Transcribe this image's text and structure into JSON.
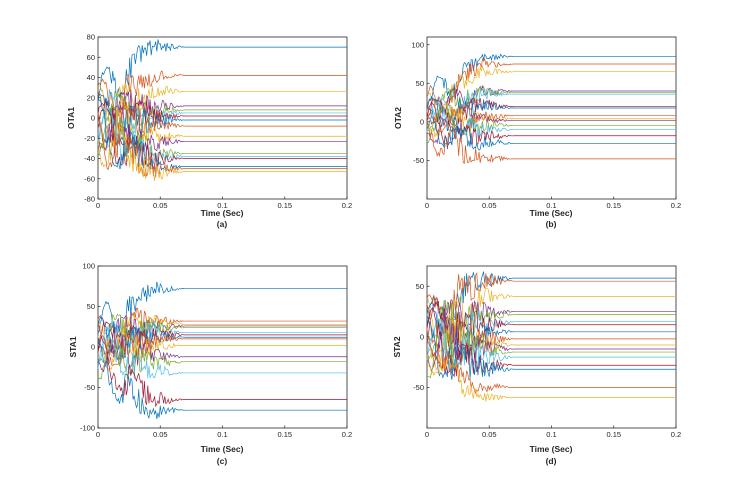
{
  "colors": [
    "#0072BD",
    "#D95319",
    "#EDB120",
    "#7E2F8E",
    "#77AC30",
    "#4DBEEE",
    "#A2142F"
  ],
  "chart_data": [
    {
      "id": "a",
      "type": "line",
      "ylabel": "OTA1",
      "xlabel": "Time (Sec)",
      "caption": "(a)",
      "xlim": [
        0,
        0.2
      ],
      "ylim": [
        -80,
        80
      ],
      "xticks": [
        0,
        0.05,
        0.1,
        0.15,
        0.2
      ],
      "yticks": [
        -80,
        -60,
        -40,
        -20,
        0,
        20,
        40,
        60,
        80
      ],
      "xtick_labels": [
        "0",
        "0.05",
        "0.1",
        "0.15",
        "0.2"
      ],
      "ytick_labels": [
        "-80",
        "-60",
        "-40",
        "-20",
        "0",
        "20",
        "40",
        "60",
        "80"
      ],
      "settle_time": 0.07,
      "final_values": [
        70,
        42,
        26,
        12,
        8,
        5,
        2,
        -2,
        -8,
        -18,
        -23,
        -35,
        -38,
        -40,
        -48,
        -50,
        -53
      ]
    },
    {
      "id": "b",
      "type": "line",
      "ylabel": "OTA2",
      "xlabel": "Time (Sec)",
      "caption": "(b)",
      "xlim": [
        0,
        0.2
      ],
      "ylim": [
        -100,
        110
      ],
      "xticks": [
        0,
        0.05,
        0.1,
        0.15,
        0.2
      ],
      "yticks": [
        -50,
        0,
        50,
        100
      ],
      "xtick_labels": [
        "0",
        "0.05",
        "0.1",
        "0.15",
        "0.2"
      ],
      "ytick_labels": [
        "-50",
        "0",
        "50",
        "100"
      ],
      "settle_time": 0.07,
      "final_values": [
        85,
        75,
        65,
        40,
        38,
        36,
        20,
        18,
        8,
        4,
        2,
        -5,
        -10,
        -18,
        -28,
        -48
      ]
    },
    {
      "id": "c",
      "type": "line",
      "ylabel": "STA1",
      "xlabel": "Time (Sec)",
      "caption": "(c)",
      "xlim": [
        0,
        0.2
      ],
      "ylim": [
        -100,
        100
      ],
      "xticks": [
        0,
        0.05,
        0.1,
        0.15,
        0.2
      ],
      "yticks": [
        -100,
        -50,
        0,
        50,
        100
      ],
      "xtick_labels": [
        "0",
        "0.05",
        "0.1",
        "0.15",
        "0.2"
      ],
      "ytick_labels": [
        "-100",
        "-50",
        "0",
        "50",
        "100"
      ],
      "settle_time": 0.07,
      "final_values": [
        72,
        32,
        28,
        26,
        24,
        18,
        15,
        12,
        10,
        2,
        -12,
        -18,
        -32,
        -65,
        -78
      ]
    },
    {
      "id": "d",
      "type": "line",
      "ylabel": "STA2",
      "xlabel": "Time (Sec)",
      "caption": "(d)",
      "xlim": [
        0,
        0.2
      ],
      "ylim": [
        -90,
        70
      ],
      "xticks": [
        0,
        0.05,
        0.1,
        0.15,
        0.2
      ],
      "yticks": [
        -50,
        0,
        50
      ],
      "xtick_labels": [
        "0",
        "0.05",
        "0.1",
        "0.15",
        "0.2"
      ],
      "ytick_labels": [
        "-50",
        "0",
        "50"
      ],
      "settle_time": 0.07,
      "final_values": [
        58,
        55,
        40,
        25,
        22,
        15,
        12,
        5,
        -2,
        -8,
        -12,
        -15,
        -20,
        -28,
        -32,
        -50,
        -60
      ]
    }
  ]
}
